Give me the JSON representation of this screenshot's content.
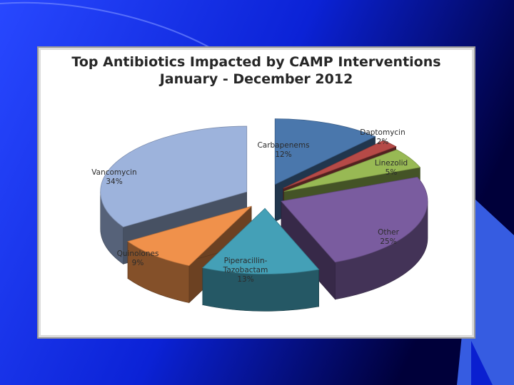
{
  "colors": {
    "background_dark": "#00004a",
    "background_blue": "#1c3cff",
    "frame_bg": "#ffffff"
  },
  "chart_data": {
    "type": "pie",
    "variant": "3d-exploded",
    "title": "Top Antibiotics Impacted by CAMP Interventions",
    "subtitle": "January - December 2012",
    "legend": "none",
    "slices": [
      {
        "name": "Carbapenems",
        "percent_label": "12%",
        "value": 12,
        "color": "#4a77ac"
      },
      {
        "name": "Daptomycin",
        "percent_label": "2%",
        "value": 2,
        "color": "#b64a47"
      },
      {
        "name": "Linezolid",
        "percent_label": "5%",
        "value": 5,
        "color": "#98b954"
      },
      {
        "name": "Other",
        "percent_label": "25%",
        "value": 25,
        "color": "#7a5c9f"
      },
      {
        "name": "Piperacillin-Tazobactam",
        "percent_label": "13%",
        "value": 13,
        "color": "#44a0b7"
      },
      {
        "name": "Quinolones",
        "percent_label": "9%",
        "value": 9,
        "color": "#f0914b"
      },
      {
        "name": "Vancomycin",
        "percent_label": "34%",
        "value": 34,
        "color": "#9db3dc"
      }
    ]
  }
}
